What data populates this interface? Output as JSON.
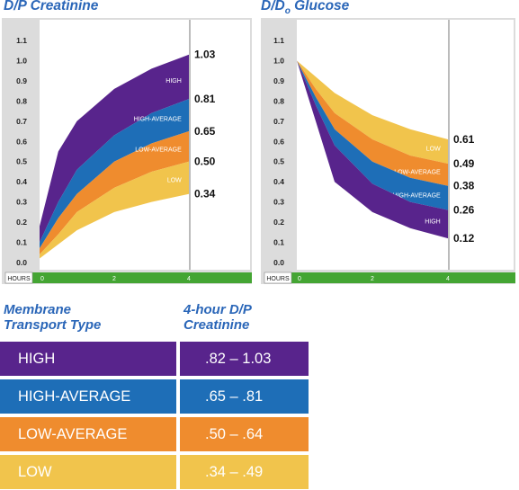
{
  "chart_data": [
    {
      "type": "area",
      "title": "D/P Creatinine",
      "ylim": [
        0,
        1.1
      ],
      "xlim": [
        0,
        4
      ],
      "y_ticks": [
        "0.0",
        "0.1",
        "0.2",
        "0.3",
        "0.4",
        "0.5",
        "0.6",
        "0.7",
        "0.8",
        "0.9",
        "1.0",
        "1.1"
      ],
      "x_axis_label": "HOURS",
      "x_ticks": [
        "0",
        "2",
        "4"
      ],
      "x": [
        0,
        0.5,
        1,
        2,
        3,
        4
      ],
      "boundaries": [
        [
          0.18,
          0.55,
          0.7,
          0.86,
          0.96,
          1.03
        ],
        [
          0.1,
          0.3,
          0.46,
          0.63,
          0.74,
          0.81
        ],
        [
          0.07,
          0.22,
          0.34,
          0.5,
          0.59,
          0.65
        ],
        [
          0.04,
          0.14,
          0.25,
          0.37,
          0.45,
          0.5
        ],
        [
          0.02,
          0.09,
          0.16,
          0.25,
          0.3,
          0.34
        ]
      ],
      "series": [
        {
          "name": "HIGH",
          "color": "#58248c"
        },
        {
          "name": "HIGH-AVERAGE",
          "color": "#1e6eb7"
        },
        {
          "name": "LOW-AVERAGE",
          "color": "#ef8c2e"
        },
        {
          "name": "LOW",
          "color": "#f1c44c"
        }
      ],
      "end_labels": [
        "1.03",
        "0.81",
        "0.65",
        "0.50",
        "0.34"
      ],
      "grid": false
    },
    {
      "type": "area",
      "title_main": "D/D",
      "title_sub": "o",
      "title_rest": " Glucose",
      "ylim": [
        0,
        1.1
      ],
      "xlim": [
        0,
        4
      ],
      "y_ticks": [
        "0.0",
        "0.1",
        "0.2",
        "0.3",
        "0.4",
        "0.5",
        "0.6",
        "0.7",
        "0.8",
        "0.9",
        "1.0",
        "1.1"
      ],
      "x_axis_label": "HOURS",
      "x_ticks": [
        "0",
        "2",
        "4"
      ],
      "x": [
        0,
        0.5,
        1,
        2,
        3,
        4
      ],
      "boundaries": [
        [
          1.0,
          0.92,
          0.84,
          0.73,
          0.66,
          0.61
        ],
        [
          1.0,
          0.86,
          0.74,
          0.61,
          0.53,
          0.49
        ],
        [
          1.0,
          0.82,
          0.66,
          0.5,
          0.42,
          0.38
        ],
        [
          1.0,
          0.78,
          0.58,
          0.39,
          0.3,
          0.26
        ],
        [
          1.0,
          0.7,
          0.4,
          0.25,
          0.17,
          0.12
        ]
      ],
      "series": [
        {
          "name": "LOW",
          "color": "#f1c44c"
        },
        {
          "name": "LOW-AVERAGE",
          "color": "#ef8c2e"
        },
        {
          "name": "HIGH-AVERAGE",
          "color": "#1e6eb7"
        },
        {
          "name": "HIGH",
          "color": "#58248c"
        }
      ],
      "end_labels": [
        "0.61",
        "0.49",
        "0.38",
        "0.26",
        "0.12"
      ],
      "grid": false
    }
  ],
  "table": {
    "header_type": "Membrane\nTransport Type",
    "header_range": "4-hour D/P\nCreatinine",
    "rows": [
      {
        "type": "HIGH",
        "range": ".82 – 1.03",
        "color": "#58248c"
      },
      {
        "type": "HIGH-AVERAGE",
        "range": ".65 – .81",
        "color": "#1e6eb7"
      },
      {
        "type": "LOW-AVERAGE",
        "range": ".50 – .64",
        "color": "#ef8c2e"
      },
      {
        "type": "LOW",
        "range": ".34 – .49",
        "color": "#f1c44c"
      }
    ]
  },
  "colors": {
    "title": "#2a66b8",
    "panel_bg": "#dcdcdc",
    "axis_bar": "#44a533"
  }
}
